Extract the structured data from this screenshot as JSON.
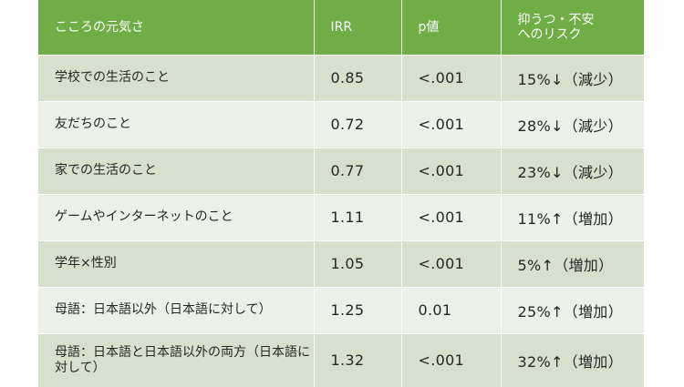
{
  "header": {
    "col1": "こころの元気さ",
    "col2": "IRR",
    "col3": "p値",
    "col4_line1": "抑うつ・不安",
    "col4_line2": "へのリスク"
  },
  "rows": [
    {
      "name": "学校での生活のこと",
      "irr": "0.85",
      "p": "<.001",
      "risk": "15%↓（減少）"
    },
    {
      "name": "友だちのこと",
      "irr": "0.72",
      "p": "<.001",
      "risk": "28%↓（減少）"
    },
    {
      "name": "家での生活のこと",
      "irr": "0.77",
      "p": "<.001",
      "risk": "23%↓（減少）"
    },
    {
      "name": "ゲームやインターネットのこと",
      "irr": "1.11",
      "p": "<.001",
      "risk": "11%↑（増加）"
    },
    {
      "name": "学年×性別",
      "irr": "1.05",
      "p": "<.001",
      "risk": "5%↑（増加）"
    },
    {
      "name": "母語：日本語以外（日本語に対して）",
      "irr": "1.25",
      "p": "0.01",
      "risk": "25%↑（増加）"
    },
    {
      "name": "母語：日本語と日本語以外の両方（日本語に対して）",
      "irr": "1.32",
      "p": "<.001",
      "risk": "32%↑（増加）"
    }
  ],
  "colors": {
    "header_bg": "#70ad47",
    "row_dark": "#d6e0cd",
    "row_light": "#ebf1e8"
  }
}
